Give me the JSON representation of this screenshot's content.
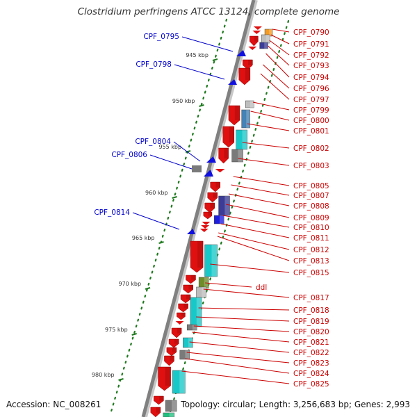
{
  "header": {
    "title": "Clostridium perfringens ATCC 13124, complete genome"
  },
  "footer": {
    "accession": "Accession: NC_008261",
    "summary": "Topology: circular; Length: 3,256,683 bp; Genes: 2,993"
  },
  "scale": {
    "ticks": [
      {
        "label": "945 kbp"
      },
      {
        "label": "950 kbp"
      },
      {
        "label": "955 kbp"
      },
      {
        "label": "960 kbp"
      },
      {
        "label": "965 kbp"
      },
      {
        "label": "970 kbp"
      },
      {
        "label": "975 kbp"
      },
      {
        "label": "980 kbp"
      }
    ]
  },
  "labels": {
    "left": [
      "CPF_0795",
      "CPF_0798",
      "CPF_0804",
      "CPF_0806",
      "CPF_0814"
    ],
    "right": [
      "CPF_0790",
      "CPF_0791",
      "CPF_0792",
      "CPF_0793",
      "CPF_0794",
      "CPF_0796",
      "CPF_0797",
      "CPF_0799",
      "CPF_0800",
      "CPF_0801",
      "CPF_0802",
      "CPF_0803",
      "CPF_0805",
      "CPF_0807",
      "CPF_0808",
      "CPF_0809",
      "CPF_0810",
      "CPF_0811",
      "CPF_0812",
      "CPF_0813",
      "CPF_0815",
      "ddl",
      "CPF_0817",
      "CPF_0818",
      "CPF_0819",
      "CPF_0820",
      "CPF_0821",
      "CPF_0822",
      "CPF_0823",
      "CPF_0824",
      "CPF_0825"
    ]
  },
  "colors": {
    "gene_forward": "#e01010",
    "gene_reverse": "#1010e0",
    "label_right": "#cc0000",
    "label_left": "#0000cc",
    "tick": "#1f7a1f",
    "backbone": "#808080",
    "cyan": "#18c8c8",
    "gray": "#7a7a7a",
    "light_gray": "#bdbdbd",
    "navy": "#3c3c96",
    "olive": "#6e8c28",
    "orange": "#f59a23",
    "steel_blue": "#4682b4"
  }
}
